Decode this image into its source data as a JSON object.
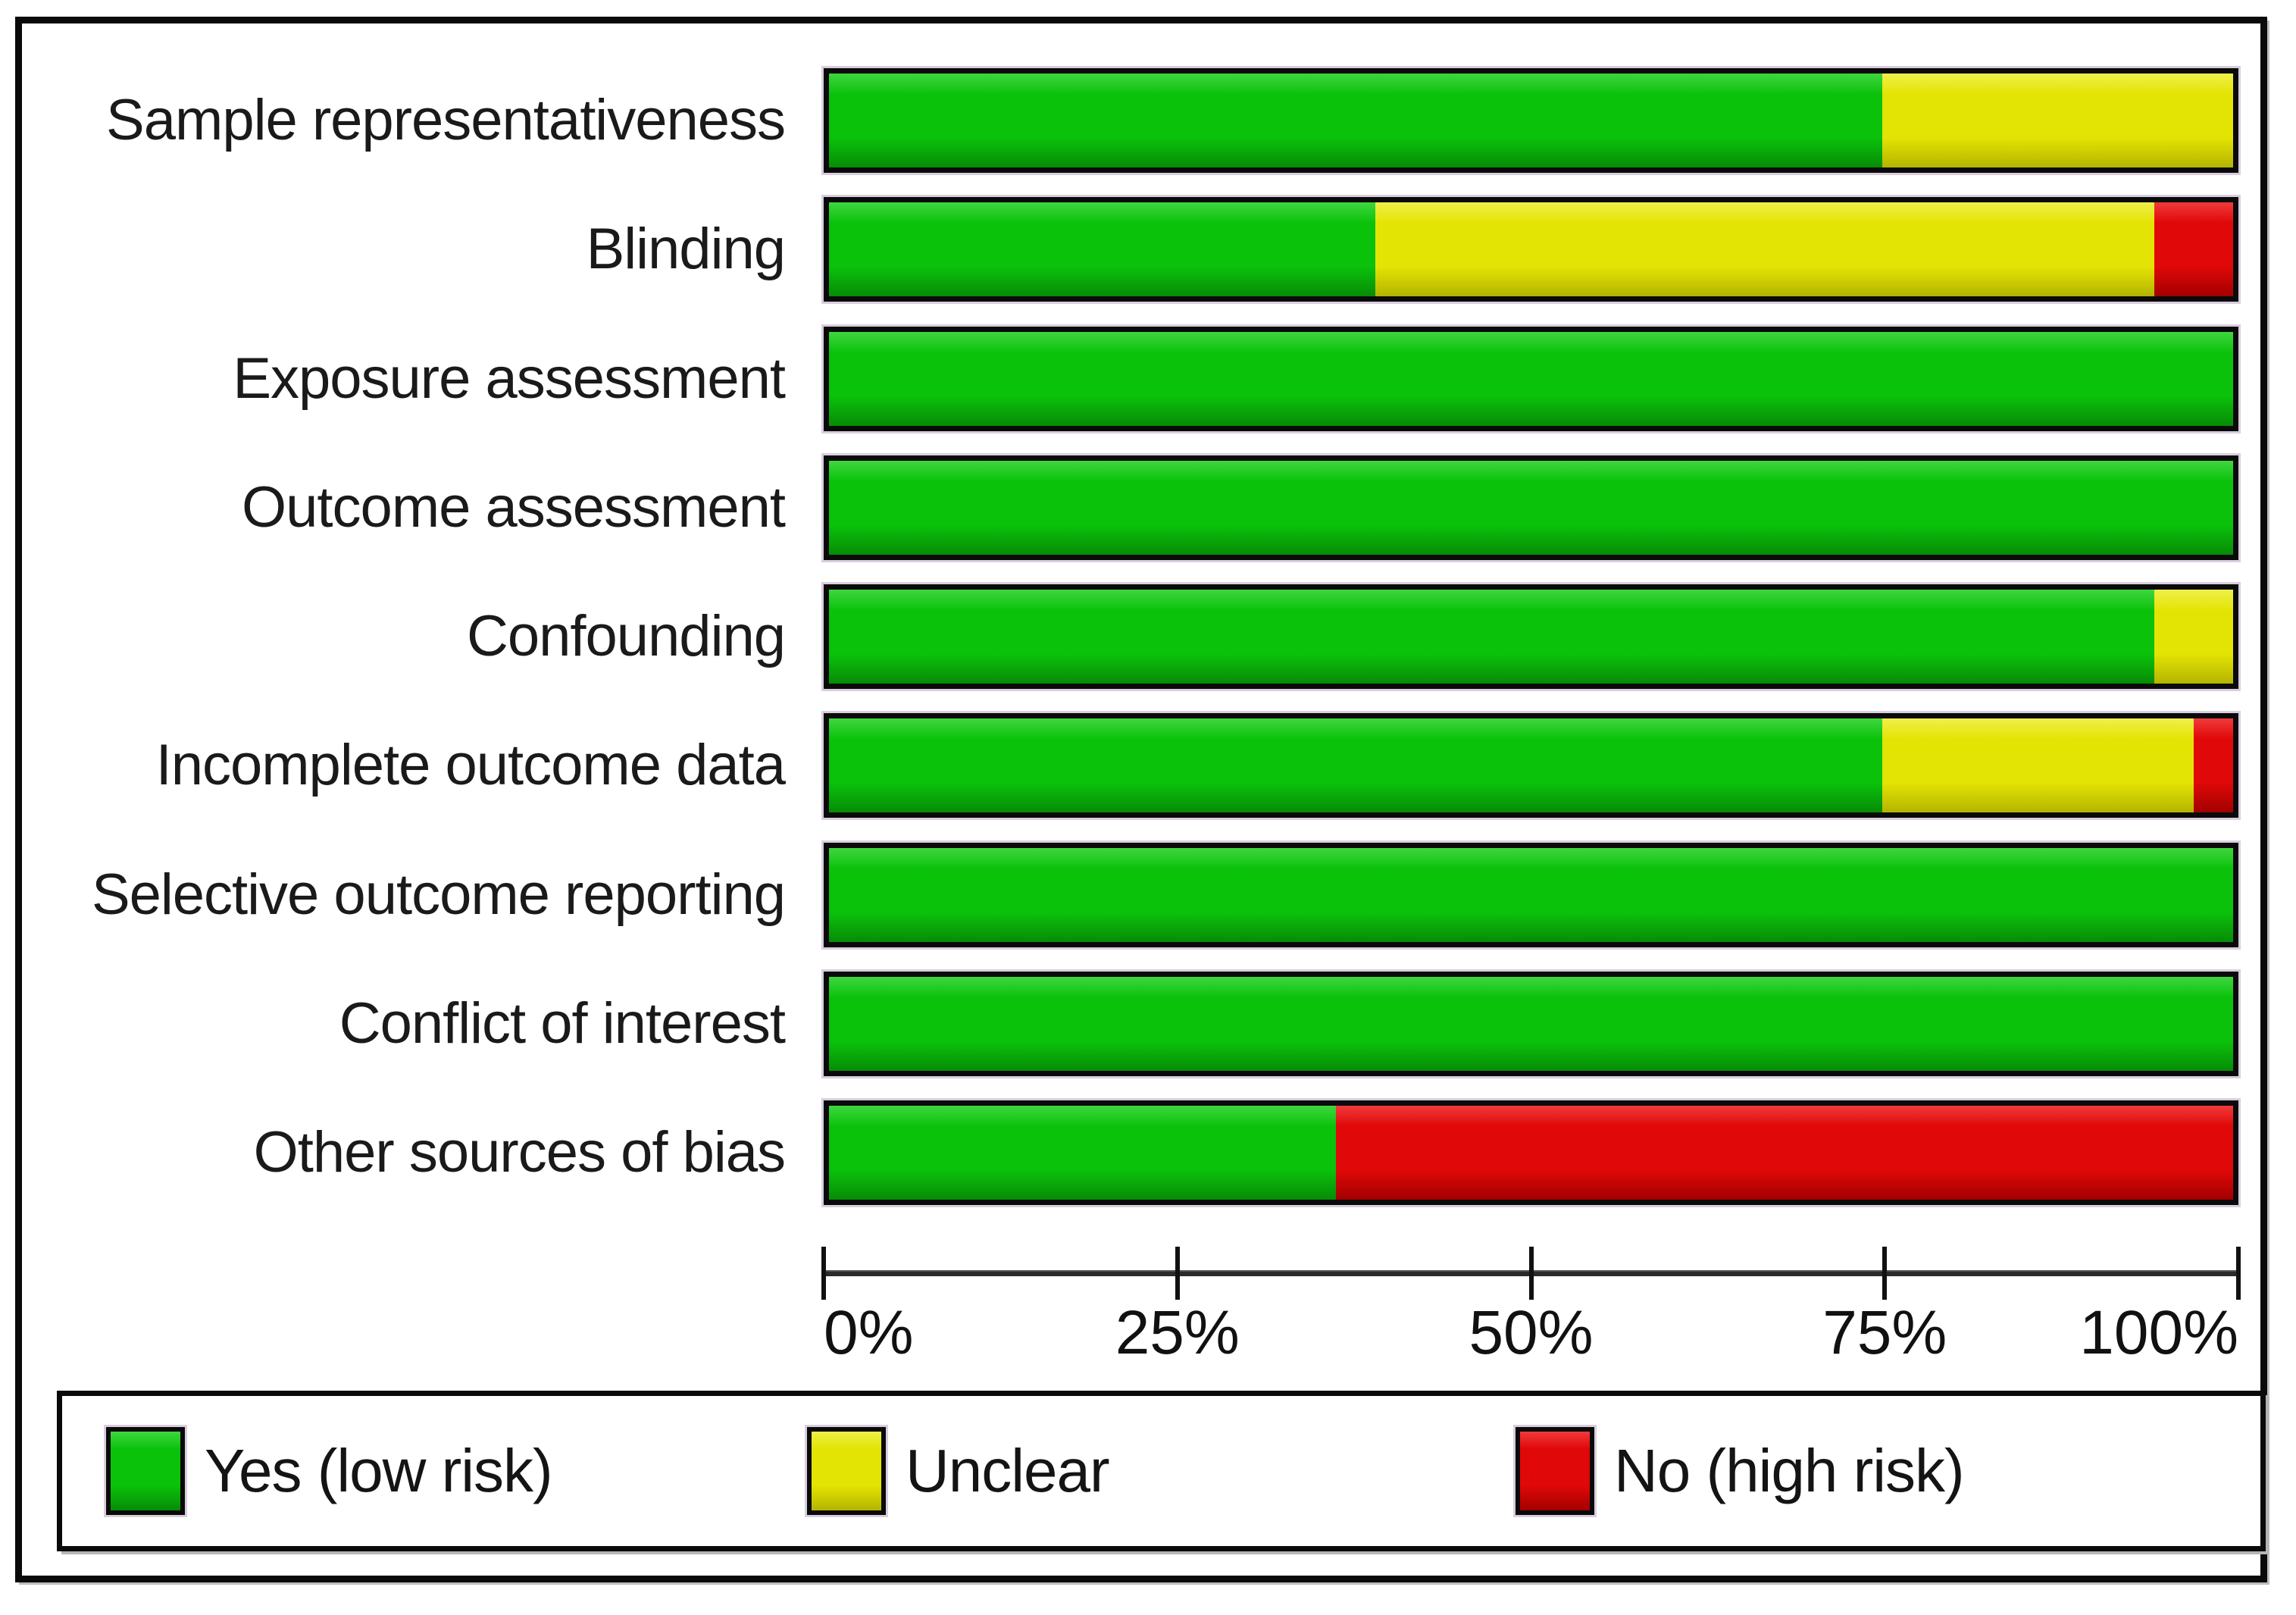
{
  "figure": {
    "kind": "risk-of-bias-summary",
    "background": "#ffffff",
    "frame_border_color": "#0a0a0a"
  },
  "chart_data": {
    "type": "bar",
    "stacked": true,
    "orientation": "horizontal",
    "title": "",
    "categories": [
      "Sample representativeness",
      "Blinding",
      "Exposure assessment",
      "Outcome assessment",
      "Confounding",
      "Incomplete outcome data",
      "Selective outcome reporting",
      "Conflict of interest",
      "Other sources of bias"
    ],
    "series": [
      {
        "name": "Yes (low risk)",
        "color": "#0bc20b",
        "color_light": "#3fd63f",
        "color_dark": "#068c06",
        "values": [
          75,
          38.9,
          100,
          100,
          94.4,
          75,
          100,
          100,
          36.1
        ]
      },
      {
        "name": "Unclear",
        "color": "#e4e404",
        "color_light": "#efef4a",
        "color_dark": "#b4b400",
        "values": [
          25,
          55.5,
          0,
          0,
          5.6,
          22.2,
          0,
          0,
          0
        ]
      },
      {
        "name": "No (high risk)",
        "color": "#e00808",
        "color_light": "#f03a3a",
        "color_dark": "#a30000",
        "values": [
          0,
          5.6,
          0,
          0,
          0,
          2.8,
          0,
          0,
          63.9
        ]
      }
    ],
    "x_axis": {
      "min": 0,
      "max": 100,
      "tick_labels": [
        "0%",
        "25%",
        "50%",
        "75%",
        "100%"
      ],
      "grid": false
    },
    "legend": {
      "position": "bottom",
      "entries": [
        {
          "label": "Yes (low risk)",
          "color": "#0bc20b"
        },
        {
          "label": "Unclear",
          "color": "#e4e404"
        },
        {
          "label": "No (high risk)",
          "color": "#e00808"
        }
      ]
    }
  }
}
